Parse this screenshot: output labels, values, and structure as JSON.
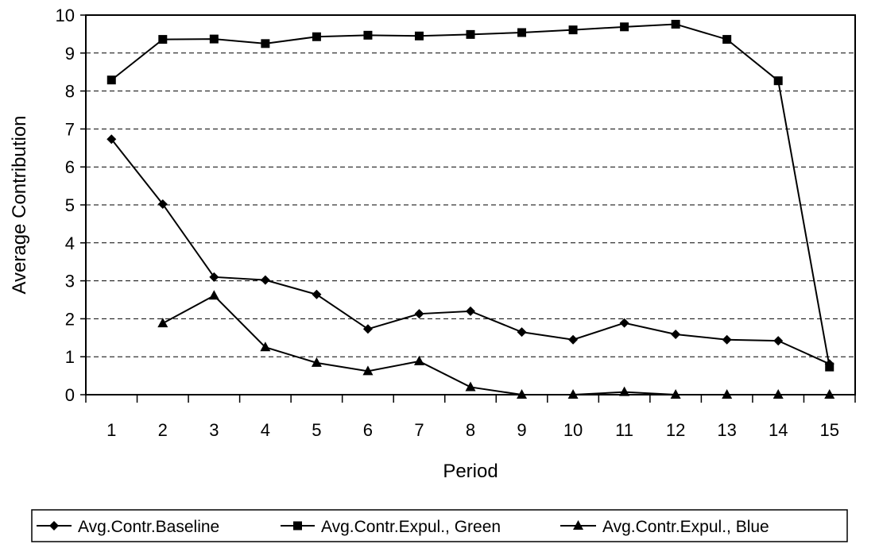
{
  "chart_data": {
    "type": "line",
    "title": "",
    "xlabel": "Period",
    "ylabel": "Average Contribution",
    "ylim": [
      0,
      10
    ],
    "yticks": [
      "0",
      "1",
      "2",
      "3",
      "4",
      "5",
      "6",
      "7",
      "8",
      "9",
      "10"
    ],
    "categories": [
      "1",
      "2",
      "3",
      "4",
      "5",
      "6",
      "7",
      "8",
      "9",
      "10",
      "11",
      "12",
      "13",
      "14",
      "15"
    ],
    "grid": "horizontal dashed",
    "legend_position": "bottom",
    "series": [
      {
        "name": "Avg.Contr.Baseline",
        "marker": "diamond",
        "color": "#000000",
        "values": [
          6.73,
          5.02,
          3.1,
          3.02,
          2.64,
          1.73,
          2.13,
          2.2,
          1.65,
          1.45,
          1.89,
          1.59,
          1.45,
          1.42,
          0.81
        ]
      },
      {
        "name": "Avg.Contr.Expul., Green",
        "marker": "square",
        "color": "#000000",
        "values": [
          8.29,
          9.36,
          9.37,
          9.25,
          9.43,
          9.47,
          9.45,
          9.49,
          9.54,
          9.61,
          9.69,
          9.76,
          9.36,
          8.27,
          0.73
        ]
      },
      {
        "name": "Avg.Contr.Expul., Blue",
        "marker": "triangle",
        "color": "#000000",
        "values": [
          null,
          1.88,
          2.61,
          1.25,
          0.84,
          0.62,
          0.88,
          0.2,
          0.0,
          0.0,
          0.07,
          0.0,
          0.0,
          0.0,
          0.0
        ]
      }
    ]
  }
}
